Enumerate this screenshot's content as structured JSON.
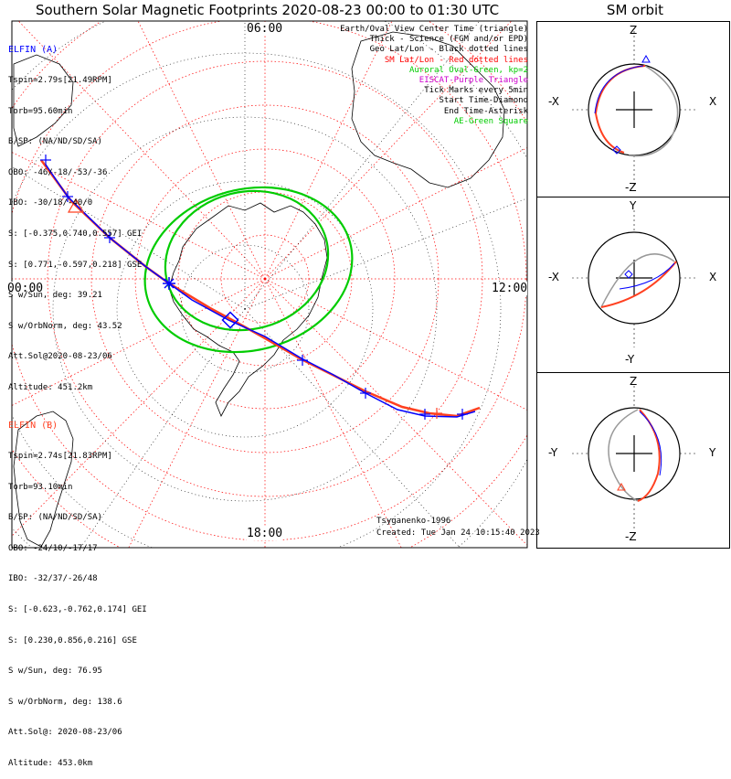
{
  "title": "Southern Solar Magnetic Footprints 2020-08-23 00:00 to 01:30 UTC",
  "orbit_title": "SM orbit",
  "map": {
    "labels": {
      "top": "06:00",
      "left": "00:00",
      "right": "12:00",
      "bottom": "18:00"
    }
  },
  "elfin_a": {
    "name": "ELFIN (A)",
    "lines": [
      "Tspin=2.79s[21.49RPM]",
      "Torb=95.60min",
      "B/SP: (NA/ND/SD/SA)",
      "OBO: -46/-18/-53/-36",
      "IBO: -30/18/-40/0",
      "S: [-0.375,0.740,0.557] GEI",
      "S: [0.771,-0.597,0.218] GSE",
      "S w/Sun, deg: 39.21",
      "S w/OrbNorm, deg: 43.52",
      "Att.Sol@2020-08-23/06",
      "Altitude: 451.2km"
    ]
  },
  "elfin_b": {
    "name": "ELFIN (B)",
    "lines": [
      "Tspin=2.74s[21.83RPM]",
      "Torb=93.10min",
      "B/SP: (NA/ND/SD/SA)",
      "OBO: -24/10/-17/17",
      "IBO: -32/37/-26/48",
      "S: [-0.623,-0.762,0.174] GEI",
      "S: [0.230,0.856,0.216] GSE",
      "S w/Sun, deg: 76.95",
      "S w/OrbNorm, deg: 138.6",
      "Att.Sol@: 2020-08-23/06",
      "Altitude: 453.0km"
    ]
  },
  "legend": [
    {
      "text": "Earth/Oval View Center Time (triangle)",
      "color": "#000000"
    },
    {
      "text": "Thick - Science (FGM and/or EPD)",
      "color": "#000000"
    },
    {
      "text": "Geo Lat/Lon - Black dotted lines",
      "color": "#000000"
    },
    {
      "text": "SM Lat/Lon - Red dotted lines",
      "color": "#ff0000"
    },
    {
      "text": "Auroral Oval-Green, kp=2",
      "color": "#00cc00"
    },
    {
      "text": "EISCAT-Purple Triangle",
      "color": "#cc00cc"
    },
    {
      "text": "Tick Marks every 5min",
      "color": "#000000"
    },
    {
      "text": "Start Time-Diamond",
      "color": "#000000"
    },
    {
      "text": "End Time-Asterisk",
      "color": "#000000"
    },
    {
      "text": "AE-Green Square",
      "color": "#00cc00"
    }
  ],
  "credit": {
    "model": "Tsyganenko-1996",
    "created": "Created: Tue Jan 24 10:15:40 2023"
  },
  "colors": {
    "elfin_a": "#0000ff",
    "elfin_b": "#ff4020",
    "sm_grid": "#ff0000",
    "oval": "#00cc00",
    "geo_grid": "#000000"
  },
  "panels": [
    {
      "top": "Z",
      "bottom": "-Z",
      "left": "-X",
      "right": "X"
    },
    {
      "top": "Y",
      "bottom": "-Y",
      "left": "-X",
      "right": "X"
    },
    {
      "top": "Z",
      "bottom": "-Z",
      "left": "-Y",
      "right": "Y"
    }
  ]
}
